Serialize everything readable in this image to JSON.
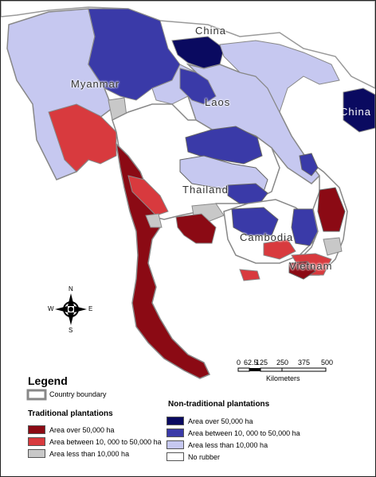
{
  "map": {
    "country_labels": {
      "china_top": "China",
      "china_right": "China",
      "myanmar": "Myanmar",
      "laos": "Laos",
      "thailand": "Thailand",
      "cambodia": "Cambodia",
      "vietnam": "Vietnam"
    },
    "compass": {
      "n": "N",
      "s": "S",
      "e": "E",
      "w": "W"
    },
    "scale_bar": {
      "ticks": [
        "0",
        "62.5",
        "125",
        "250",
        "375",
        "500"
      ],
      "unit": "Kilometers"
    }
  },
  "legend": {
    "title": "Legend",
    "country_boundary": "Country boundary",
    "traditional": {
      "title": "Traditional plantations",
      "items": [
        {
          "label": "Area over 50,000 ha",
          "color": "#8b0a14"
        },
        {
          "label": "Area between 10, 000 to 50,000 ha",
          "color": "#d83a3e"
        },
        {
          "label": "Area less than 10,000 ha",
          "color": "#c8c8c8"
        }
      ]
    },
    "non_traditional": {
      "title": "Non-traditional plantations",
      "items": [
        {
          "label": "Area over 50,000 ha",
          "color": "#0a0a60"
        },
        {
          "label": "Area between 10, 000 to 50,000 ha",
          "color": "#3a3aa8"
        },
        {
          "label": "Area less than 10,000 ha",
          "color": "#c6c8f0"
        },
        {
          "label": "No rubber",
          "color": "#ffffff"
        }
      ]
    }
  }
}
